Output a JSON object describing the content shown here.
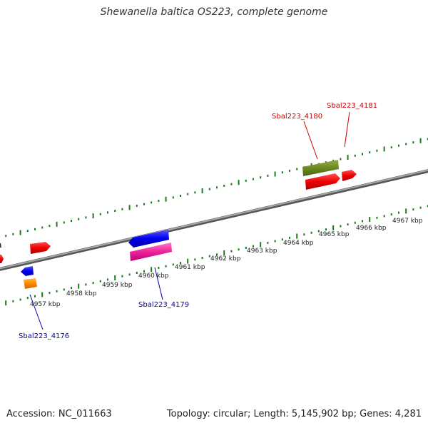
{
  "title": "Shewanella baltica OS223, complete genome",
  "footer": {
    "accession": "Accession: NC_011663",
    "summary": "Topology: circular; Length: 5,145,902 bp; Genes: 4,281"
  },
  "colors": {
    "backbone": "#7a7a7a",
    "tick": "#1a7a1a",
    "label_red": "#cc0000",
    "label_blue": "#0000aa"
  },
  "kbp_labels": [
    "4957 kbp",
    "4958 kbp",
    "4959 kbp",
    "4960 kbp",
    "4961 kbp",
    "4962 kbp",
    "4963 kbp",
    "4964 kbp",
    "4965 kbp",
    "4966 kbp",
    "4967 kbp"
  ],
  "genes": {
    "g4180": "Sbal223_4180",
    "g4181": "Sbal223_4181",
    "g4179": "Sbal223_4179",
    "g4176": "Sbal223_4176"
  }
}
